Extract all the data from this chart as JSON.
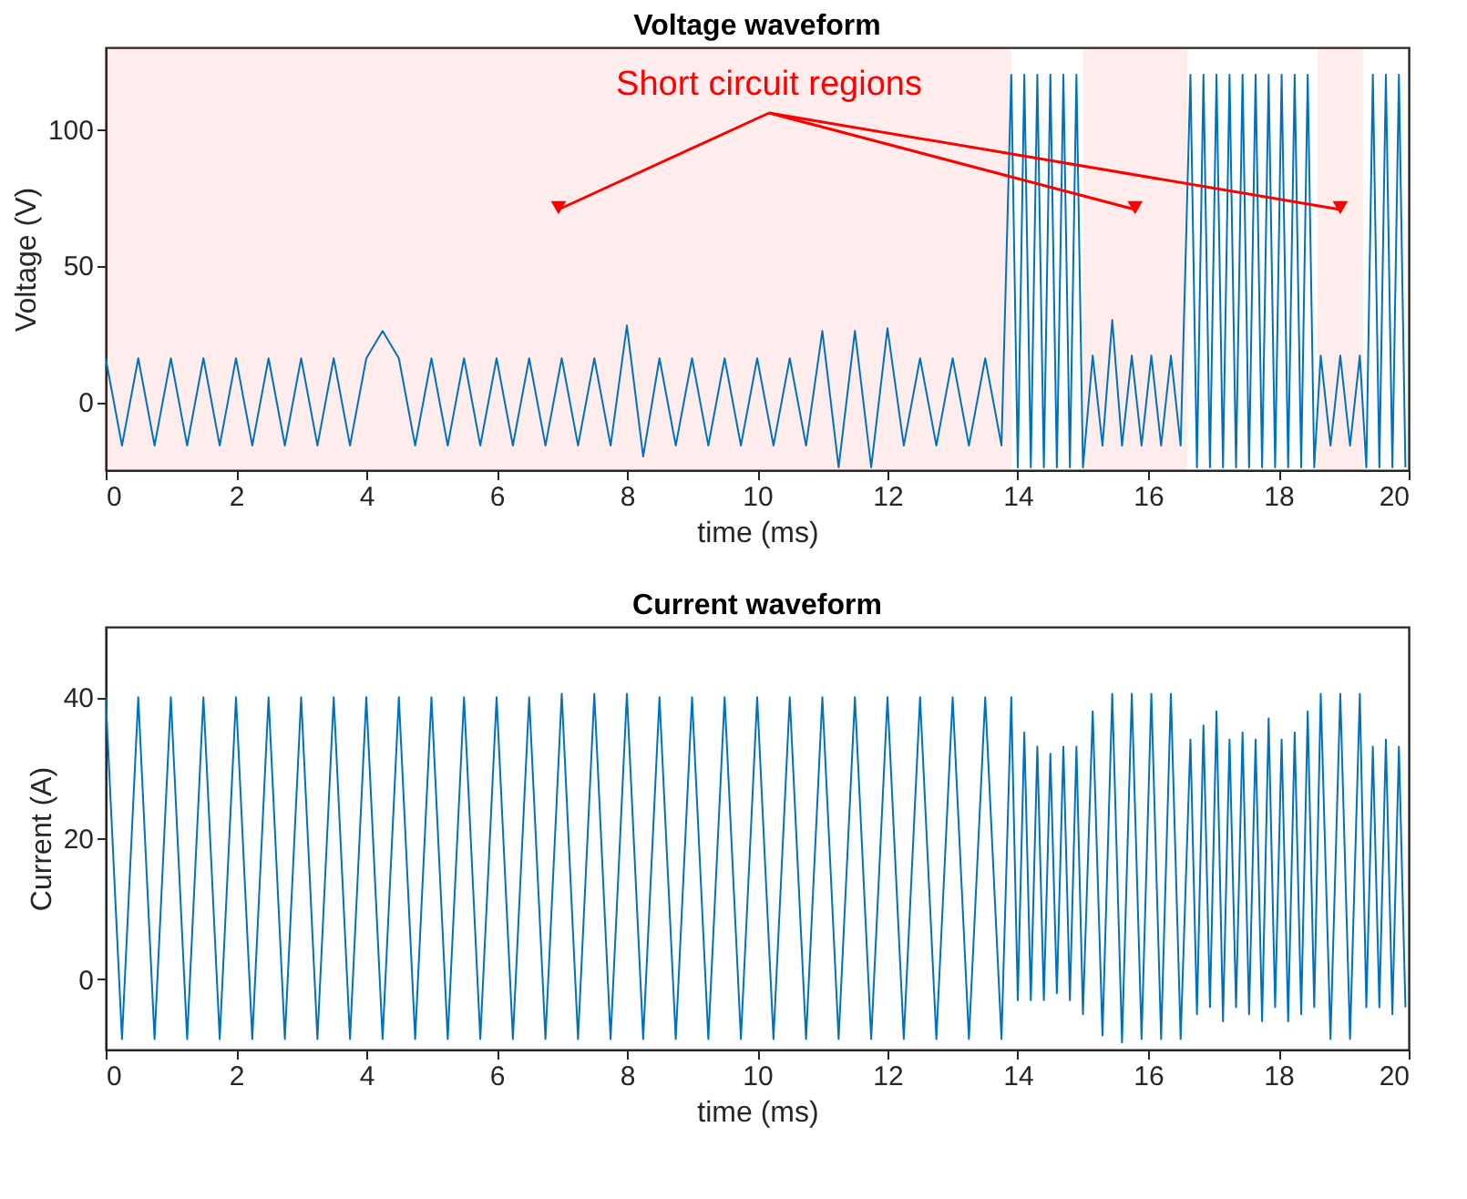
{
  "chart_data": [
    {
      "type": "line",
      "title": "Voltage waveform",
      "xlabel": "time (ms)",
      "ylabel": "Voltage (V)",
      "xlim": [
        0,
        20
      ],
      "xticks": [
        0,
        2,
        4,
        6,
        8,
        10,
        12,
        14,
        16,
        18,
        20
      ],
      "ylim": [
        -25,
        130
      ],
      "yticks": [
        0,
        50,
        100
      ],
      "grid": false,
      "line_style": "solid",
      "marker": "none",
      "annotations": [
        "Short circuit regions"
      ],
      "bands": [
        {
          "axis": "x",
          "from": 0,
          "to": 13.9,
          "color": "#ff0000"
        },
        {
          "axis": "x",
          "from": 15.0,
          "to": 16.6,
          "color": "#ff0000"
        },
        {
          "axis": "x",
          "from": 18.6,
          "to": 19.3,
          "color": "#ff0000"
        }
      ],
      "series": [
        {
          "color": "#0072bd",
          "x": [
            0,
            0.25,
            0.5,
            0.75,
            1,
            1.25,
            1.5,
            1.75,
            2,
            2.25,
            2.5,
            2.75,
            3,
            3.25,
            3.5,
            3.75,
            4,
            4.25,
            4.5,
            4.75,
            5,
            5.25,
            5.5,
            5.75,
            6,
            6.25,
            6.5,
            6.75,
            7,
            7.25,
            7.5,
            7.75,
            8,
            8.25,
            8.5,
            8.75,
            9,
            9.25,
            9.5,
            9.75,
            10,
            10.25,
            10.5,
            10.75,
            11,
            11.25,
            11.5,
            11.75,
            12,
            12.25,
            12.5,
            12.75,
            13,
            13.25,
            13.5,
            13.75,
            13.9,
            14.0,
            14.1,
            14.2,
            14.3,
            14.4,
            14.5,
            14.6,
            14.7,
            14.8,
            14.9,
            15.0,
            15.15,
            15.3,
            15.45,
            15.6,
            15.75,
            15.9,
            16.05,
            16.2,
            16.35,
            16.5,
            16.65,
            16.75,
            16.85,
            16.95,
            17.05,
            17.15,
            17.25,
            17.35,
            17.45,
            17.55,
            17.65,
            17.75,
            17.85,
            17.95,
            18.05,
            18.15,
            18.25,
            18.35,
            18.45,
            18.55,
            18.65,
            18.8,
            18.95,
            19.1,
            19.25,
            19.35,
            19.45,
            19.55,
            19.65,
            19.75,
            19.85,
            19.95
          ],
          "values": [
            16,
            -16,
            16,
            -16,
            16,
            -16,
            16,
            -16,
            16,
            -16,
            16,
            -16,
            16,
            -16,
            16,
            -16,
            16,
            26,
            16,
            -16,
            16,
            -16,
            16,
            -16,
            16,
            -16,
            16,
            -16,
            16,
            -16,
            16,
            -16,
            28,
            -20,
            16,
            -16,
            16,
            -16,
            16,
            -16,
            16,
            -16,
            16,
            -16,
            26,
            -24,
            26,
            -24,
            27,
            -16,
            16,
            -16,
            16,
            -16,
            16,
            -16,
            120,
            -24,
            120,
            -24,
            120,
            -24,
            120,
            -24,
            120,
            -24,
            120,
            -24,
            17,
            -16,
            30,
            -16,
            17,
            -16,
            17,
            -16,
            17,
            -16,
            120,
            -24,
            120,
            -24,
            120,
            -24,
            120,
            -24,
            120,
            -24,
            120,
            -24,
            120,
            -24,
            120,
            -24,
            120,
            -24,
            120,
            -24,
            17,
            -16,
            17,
            -16,
            17,
            -24,
            120,
            -24,
            120,
            -24,
            120,
            -24
          ]
        }
      ]
    },
    {
      "type": "line",
      "title": "Current waveform",
      "xlabel": "time (ms)",
      "ylabel": "Current (A)",
      "xlim": [
        0,
        20
      ],
      "xticks": [
        0,
        2,
        4,
        6,
        8,
        10,
        12,
        14,
        16,
        18,
        20
      ],
      "ylim": [
        -10,
        50
      ],
      "yticks": [
        0,
        20,
        40
      ],
      "grid": false,
      "line_style": "solid",
      "marker": "none",
      "series": [
        {
          "color": "#0072bd",
          "x": [
            0,
            0.25,
            0.5,
            0.75,
            1,
            1.25,
            1.5,
            1.75,
            2,
            2.25,
            2.5,
            2.75,
            3,
            3.25,
            3.5,
            3.75,
            4,
            4.25,
            4.5,
            4.75,
            5,
            5.25,
            5.5,
            5.75,
            6,
            6.25,
            6.5,
            6.75,
            7,
            7.25,
            7.5,
            7.75,
            8,
            8.25,
            8.5,
            8.75,
            9,
            9.25,
            9.5,
            9.75,
            10,
            10.25,
            10.5,
            10.75,
            11,
            11.25,
            11.5,
            11.75,
            12,
            12.25,
            12.5,
            12.75,
            13,
            13.25,
            13.5,
            13.75,
            13.9,
            14.0,
            14.1,
            14.2,
            14.3,
            14.4,
            14.5,
            14.6,
            14.7,
            14.8,
            14.9,
            15.0,
            15.15,
            15.3,
            15.45,
            15.6,
            15.75,
            15.9,
            16.05,
            16.2,
            16.35,
            16.5,
            16.65,
            16.75,
            16.85,
            16.95,
            17.05,
            17.15,
            17.25,
            17.35,
            17.45,
            17.55,
            17.65,
            17.75,
            17.85,
            17.95,
            18.05,
            18.15,
            18.25,
            18.35,
            18.45,
            18.55,
            18.65,
            18.8,
            18.95,
            19.1,
            19.25,
            19.35,
            19.45,
            19.55,
            19.65,
            19.75,
            19.85,
            19.95
          ],
          "values": [
            40,
            -8.5,
            40,
            -8.5,
            40,
            -8.5,
            40,
            -8.5,
            40,
            -8.5,
            40,
            -8.5,
            40,
            -8.5,
            40,
            -8.5,
            40,
            -8.5,
            40,
            -8.5,
            40,
            -8.5,
            40,
            -8.5,
            40,
            -8.5,
            40,
            -8.5,
            40.5,
            -8.5,
            40.5,
            -8.5,
            40.5,
            -8.5,
            40,
            -8.5,
            40,
            -8.5,
            40,
            -8.5,
            40,
            -8.5,
            40,
            -8.5,
            40,
            -8.5,
            40,
            -8.5,
            40,
            -8.5,
            40,
            -8.5,
            40,
            -8.5,
            40,
            -8.5,
            40,
            -3,
            35,
            -3,
            33,
            -3,
            32,
            -2,
            33,
            -3,
            33,
            -5,
            38,
            -8,
            40.5,
            -9,
            40.5,
            -8.5,
            40.5,
            -8.5,
            40.5,
            -8.5,
            34,
            -5,
            36,
            -4,
            38,
            -6,
            34,
            -4,
            35,
            -5,
            34,
            -6,
            37,
            -4,
            34,
            -6,
            35,
            -5,
            38,
            -4,
            40.5,
            -8.5,
            40.5,
            -8.5,
            40.5,
            -4,
            33,
            -4,
            34,
            -5,
            33,
            -4
          ]
        }
      ]
    }
  ]
}
